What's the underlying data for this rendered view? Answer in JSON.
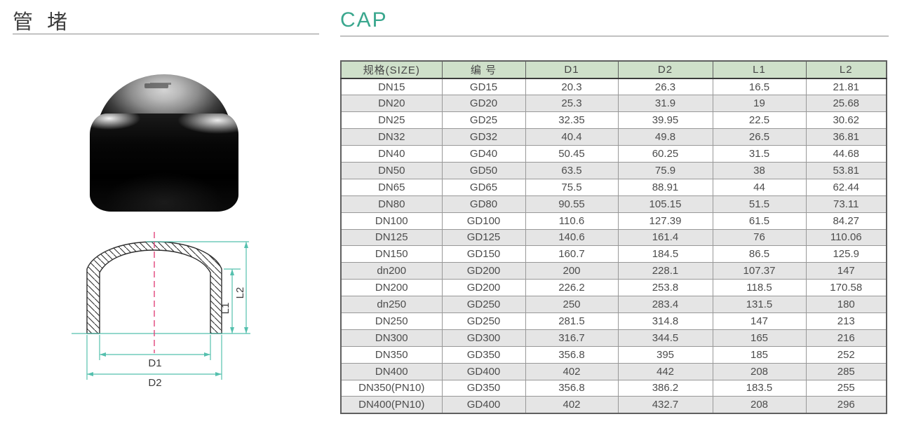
{
  "titles": {
    "cn": "管 堵",
    "en": "CAP"
  },
  "drawing": {
    "d1": "D1",
    "d2": "D2",
    "l1": "L1",
    "l2": "L2"
  },
  "table": {
    "headers": [
      "规格(SIZE)",
      "编 号",
      "D1",
      "D2",
      "L1",
      "L2"
    ],
    "rows": [
      [
        "DN15",
        "GD15",
        "20.3",
        "26.3",
        "16.5",
        "21.81"
      ],
      [
        "DN20",
        "GD20",
        "25.3",
        "31.9",
        "19",
        "25.68"
      ],
      [
        "DN25",
        "GD25",
        "32.35",
        "39.95",
        "22.5",
        "30.62"
      ],
      [
        "DN32",
        "GD32",
        "40.4",
        "49.8",
        "26.5",
        "36.81"
      ],
      [
        "DN40",
        "GD40",
        "50.45",
        "60.25",
        "31.5",
        "44.68"
      ],
      [
        "DN50",
        "GD50",
        "63.5",
        "75.9",
        "38",
        "53.81"
      ],
      [
        "DN65",
        "GD65",
        "75.5",
        "88.91",
        "44",
        "62.44"
      ],
      [
        "DN80",
        "GD80",
        "90.55",
        "105.15",
        "51.5",
        "73.11"
      ],
      [
        "DN100",
        "GD100",
        "110.6",
        "127.39",
        "61.5",
        "84.27"
      ],
      [
        "DN125",
        "GD125",
        "140.6",
        "161.4",
        "76",
        "110.06"
      ],
      [
        "DN150",
        "GD150",
        "160.7",
        "184.5",
        "86.5",
        "125.9"
      ],
      [
        "dn200",
        "GD200",
        "200",
        "228.1",
        "107.37",
        "147"
      ],
      [
        "DN200",
        "GD200",
        "226.2",
        "253.8",
        "118.5",
        "170.58"
      ],
      [
        "dn250",
        "GD250",
        "250",
        "283.4",
        "131.5",
        "180"
      ],
      [
        "DN250",
        "GD250",
        "281.5",
        "314.8",
        "147",
        "213"
      ],
      [
        "DN300",
        "GD300",
        "316.7",
        "344.5",
        "165",
        "216"
      ],
      [
        "DN350",
        "GD350",
        "356.8",
        "395",
        "185",
        "252"
      ],
      [
        "DN400",
        "GD400",
        "402",
        "442",
        "208",
        "285"
      ],
      [
        "DN350(PN10)",
        "GD350",
        "356.8",
        "386.2",
        "183.5",
        "255"
      ],
      [
        "DN400(PN10)",
        "GD400",
        "402",
        "432.7",
        "208",
        "296"
      ]
    ]
  },
  "colors": {
    "accent_teal": "#3aa78e",
    "table_header_bg": "#cfe0ca",
    "row_alt_bg": "#e5e5e5",
    "dimension_line": "#55c0ae",
    "centerline_pink": "#e0457b"
  }
}
